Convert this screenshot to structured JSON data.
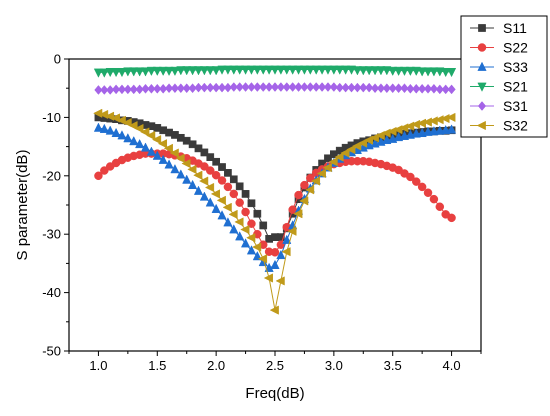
{
  "chart_data": {
    "type": "line",
    "title": "",
    "xlabel": "Freq(dB)",
    "ylabel": "S parameter(dB)",
    "xlim": [
      0.75,
      4.25
    ],
    "ylim": [
      -50,
      0
    ],
    "xticks": [
      1.0,
      1.5,
      2.0,
      2.5,
      3.0,
      3.5,
      4.0
    ],
    "xtick_labels": [
      "1.0",
      "1.5",
      "2.0",
      "2.5",
      "3.0",
      "3.5",
      "4.0"
    ],
    "yticks": [
      -50,
      -40,
      -30,
      -20,
      -10,
      0
    ],
    "ytick_labels": [
      "-50",
      "-40",
      "-30",
      "-20",
      "-10",
      "0"
    ],
    "grid": false,
    "legend_position": "top-right",
    "x": [
      1.0,
      1.05,
      1.1,
      1.15,
      1.2,
      1.25,
      1.3,
      1.35,
      1.4,
      1.45,
      1.5,
      1.55,
      1.6,
      1.65,
      1.7,
      1.75,
      1.8,
      1.85,
      1.9,
      1.95,
      2.0,
      2.05,
      2.1,
      2.15,
      2.2,
      2.25,
      2.3,
      2.35,
      2.4,
      2.45,
      2.5,
      2.55,
      2.6,
      2.65,
      2.7,
      2.75,
      2.8,
      2.85,
      2.9,
      2.95,
      3.0,
      3.05,
      3.1,
      3.15,
      3.2,
      3.25,
      3.3,
      3.35,
      3.4,
      3.45,
      3.5,
      3.55,
      3.6,
      3.65,
      3.7,
      3.75,
      3.8,
      3.85,
      3.9,
      3.95,
      4.0
    ],
    "series": [
      {
        "name": "S11",
        "color": "#3a3a3a",
        "marker": "square",
        "values": [
          -10.0,
          -10.1,
          -10.2,
          -10.3,
          -10.5,
          -10.6,
          -10.8,
          -11.0,
          -11.3,
          -11.5,
          -11.8,
          -12.2,
          -12.6,
          -13.0,
          -13.5,
          -14.0,
          -14.6,
          -15.3,
          -16.0,
          -16.8,
          -17.6,
          -18.5,
          -19.5,
          -20.6,
          -21.8,
          -23.1,
          -24.7,
          -26.5,
          -28.5,
          -30.8,
          -30.5,
          -30.5,
          -29.0,
          -26.5,
          -24.0,
          -22.0,
          -20.3,
          -19.0,
          -17.9,
          -17.0,
          -16.3,
          -15.7,
          -15.2,
          -14.8,
          -14.4,
          -14.1,
          -13.9,
          -13.6,
          -13.4,
          -13.2,
          -13.1,
          -12.9,
          -12.8,
          -12.7,
          -12.6,
          -12.5,
          -12.4,
          -12.4,
          -12.3,
          -12.3,
          -12.2
        ]
      },
      {
        "name": "S22",
        "color": "#e84040",
        "marker": "circle",
        "values": [
          -20.0,
          -19.1,
          -18.4,
          -17.8,
          -17.3,
          -16.9,
          -16.6,
          -16.4,
          -16.2,
          -16.2,
          -16.2,
          -16.2,
          -16.3,
          -16.5,
          -16.7,
          -17.0,
          -17.4,
          -17.9,
          -18.4,
          -19.1,
          -19.9,
          -20.8,
          -21.9,
          -23.1,
          -24.6,
          -26.2,
          -28.2,
          -30.0,
          -31.8,
          -33.0,
          -33.1,
          -31.8,
          -28.8,
          -25.8,
          -23.3,
          -21.6,
          -20.4,
          -19.5,
          -18.9,
          -18.4,
          -18.0,
          -17.8,
          -17.6,
          -17.5,
          -17.5,
          -17.5,
          -17.6,
          -17.8,
          -18.0,
          -18.3,
          -18.6,
          -19.0,
          -19.6,
          -20.2,
          -21.0,
          -21.9,
          -22.9,
          -24.0,
          -25.3,
          -26.6,
          -27.2
        ]
      },
      {
        "name": "S33",
        "color": "#1f6fd1",
        "marker": "triangle-up",
        "values": [
          -11.8,
          -12.0,
          -12.3,
          -12.7,
          -13.1,
          -13.6,
          -14.1,
          -14.6,
          -15.2,
          -15.9,
          -16.6,
          -17.3,
          -18.1,
          -18.9,
          -19.8,
          -20.7,
          -21.6,
          -22.6,
          -23.6,
          -24.6,
          -25.7,
          -26.8,
          -28.0,
          -29.2,
          -30.4,
          -31.6,
          -32.8,
          -33.8,
          -34.8,
          -35.8,
          -35.3,
          -33.6,
          -31.0,
          -28.5,
          -26.0,
          -24.0,
          -22.2,
          -20.8,
          -19.6,
          -18.6,
          -17.8,
          -17.1,
          -16.5,
          -16.0,
          -15.6,
          -15.2,
          -14.8,
          -14.5,
          -14.2,
          -13.9,
          -13.7,
          -13.4,
          -13.2,
          -13.0,
          -12.8,
          -12.7,
          -12.5,
          -12.4,
          -12.3,
          -12.2,
          -12.1
        ]
      },
      {
        "name": "S21",
        "color": "#1faa6a",
        "marker": "triangle-down",
        "values": [
          -2.3,
          -2.3,
          -2.2,
          -2.2,
          -2.2,
          -2.1,
          -2.1,
          -2.1,
          -2.1,
          -2.0,
          -2.0,
          -2.0,
          -2.0,
          -2.0,
          -1.9,
          -1.9,
          -1.9,
          -1.9,
          -1.9,
          -1.9,
          -1.9,
          -1.8,
          -1.8,
          -1.8,
          -1.8,
          -1.8,
          -1.8,
          -1.8,
          -1.8,
          -1.8,
          -1.8,
          -1.8,
          -1.8,
          -1.8,
          -1.8,
          -1.8,
          -1.8,
          -1.8,
          -1.8,
          -1.8,
          -1.8,
          -1.8,
          -1.8,
          -1.8,
          -1.9,
          -1.9,
          -1.9,
          -1.9,
          -1.9,
          -1.9,
          -2.0,
          -2.0,
          -2.0,
          -2.0,
          -2.0,
          -2.1,
          -2.1,
          -2.1,
          -2.1,
          -2.2,
          -2.2
        ]
      },
      {
        "name": "S31",
        "color": "#a564e8",
        "marker": "diamond",
        "values": [
          -5.3,
          -5.3,
          -5.3,
          -5.2,
          -5.2,
          -5.2,
          -5.2,
          -5.2,
          -5.1,
          -5.1,
          -5.1,
          -5.1,
          -5.0,
          -5.0,
          -5.0,
          -5.0,
          -5.0,
          -4.9,
          -4.9,
          -4.9,
          -4.9,
          -4.9,
          -4.9,
          -4.8,
          -4.8,
          -4.8,
          -4.8,
          -4.8,
          -4.8,
          -4.8,
          -4.8,
          -4.8,
          -4.8,
          -4.8,
          -4.8,
          -4.8,
          -4.8,
          -4.8,
          -4.8,
          -4.8,
          -4.8,
          -4.9,
          -4.9,
          -4.9,
          -4.9,
          -4.9,
          -4.9,
          -5.0,
          -5.0,
          -5.0,
          -5.0,
          -5.0,
          -5.0,
          -5.1,
          -5.1,
          -5.1,
          -5.1,
          -5.1,
          -5.2,
          -5.2,
          -5.2
        ]
      },
      {
        "name": "S32",
        "color": "#c09a1a",
        "marker": "triangle-left",
        "values": [
          -9.3,
          -9.5,
          -9.8,
          -10.1,
          -10.5,
          -10.9,
          -11.4,
          -11.9,
          -12.5,
          -13.1,
          -13.8,
          -14.5,
          -15.3,
          -16.1,
          -17.0,
          -17.9,
          -18.9,
          -19.9,
          -20.9,
          -22.0,
          -23.1,
          -24.2,
          -25.4,
          -26.6,
          -27.9,
          -29.2,
          -30.6,
          -32.2,
          -34.2,
          -37.5,
          -43.0,
          -38.0,
          -33.0,
          -29.5,
          -26.5,
          -24.3,
          -22.4,
          -20.9,
          -19.6,
          -18.6,
          -17.6,
          -16.8,
          -16.1,
          -15.5,
          -14.9,
          -14.4,
          -13.9,
          -13.5,
          -13.1,
          -12.7,
          -12.4,
          -12.1,
          -11.8,
          -11.5,
          -11.2,
          -11.0,
          -10.8,
          -10.6,
          -10.4,
          -10.2,
          -10.0
        ]
      }
    ]
  }
}
